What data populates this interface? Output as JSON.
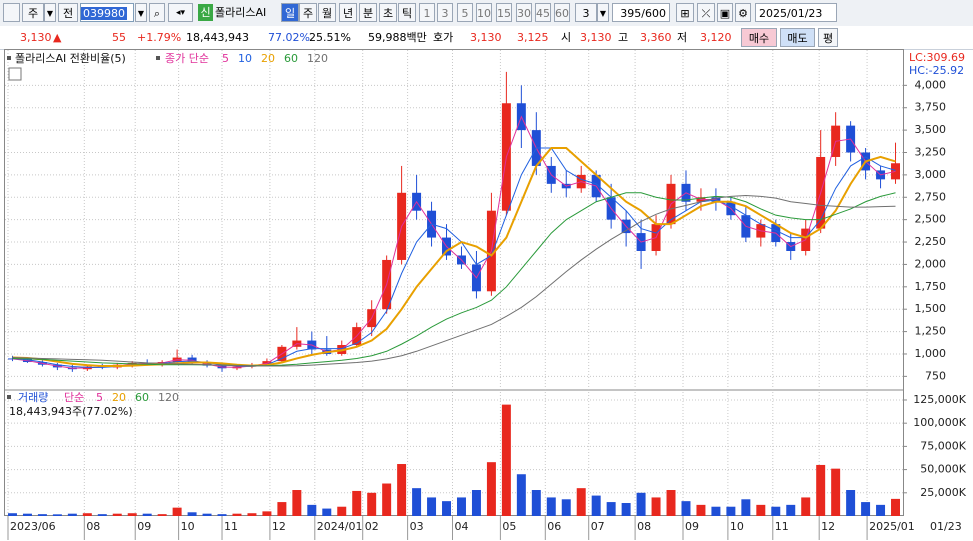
{
  "toolbar": {
    "market": "주",
    "mode": "전",
    "code": "039980",
    "badge": "신",
    "name": "폴라리스AI",
    "periods": [
      "일",
      "주",
      "월",
      "년",
      "분",
      "초",
      "틱"
    ],
    "minutes": [
      "1",
      "3",
      "5",
      "10",
      "15",
      "30",
      "45",
      "60"
    ],
    "custom": "3",
    "count": "395",
    "count_max": "/600",
    "date": "2025/01/23"
  },
  "quote": {
    "price": "3,130",
    "arrow": "▲",
    "change": "55",
    "rate": "+1.79%",
    "volume": "18,443,943",
    "vol_rate": "77.02%",
    "turnover": "25.51%",
    "amount": "59,988백만",
    "ask_label": "호가",
    "ask": "3,130",
    "bid": "3,125",
    "open_label": "시",
    "open": "3,130",
    "high_label": "고",
    "high": "3,360",
    "low_label": "저",
    "low": "3,120",
    "buy": "매수",
    "sell": "매도",
    "avg": "평"
  },
  "chart_data": [
    {
      "type": "candlestick",
      "title": "폴라리스AI 전환비율(5)",
      "ma_label": "종가 단순",
      "annotations": [
        "LC:309.69",
        "HC:-25.92"
      ],
      "x_end_label": "01/23",
      "x": [
        0,
        1,
        2,
        3,
        4,
        5,
        6,
        7,
        8,
        9,
        10,
        11,
        12,
        13,
        14,
        15,
        16,
        17,
        18,
        19,
        20,
        21,
        22,
        23,
        24,
        25,
        26,
        27,
        28,
        29,
        30,
        31,
        32,
        33,
        34,
        35,
        36,
        37,
        38,
        39,
        40,
        41,
        42,
        43,
        44,
        45,
        46,
        47,
        48,
        49,
        50,
        51,
        52,
        53,
        54,
        55,
        56,
        57,
        58,
        59
      ],
      "xlim": [
        -0.5,
        59.5
      ],
      "xticks": [
        {
          "value": -0.3,
          "label": "2023/06"
        },
        {
          "value": 4.8,
          "label": "08"
        },
        {
          "value": 8.2,
          "label": "09"
        },
        {
          "value": 11.1,
          "label": "10"
        },
        {
          "value": 14,
          "label": "11"
        },
        {
          "value": 17.2,
          "label": "12"
        },
        {
          "value": 20.2,
          "label": "2024/01"
        },
        {
          "value": 23.4,
          "label": "02"
        },
        {
          "value": 26.4,
          "label": "03"
        },
        {
          "value": 29.4,
          "label": "04"
        },
        {
          "value": 32.6,
          "label": "05"
        },
        {
          "value": 35.6,
          "label": "06"
        },
        {
          "value": 38.5,
          "label": "07"
        },
        {
          "value": 41.6,
          "label": "08"
        },
        {
          "value": 44.8,
          "label": "09"
        },
        {
          "value": 47.8,
          "label": "10"
        },
        {
          "value": 50.8,
          "label": "11"
        },
        {
          "value": 53.9,
          "label": "12"
        },
        {
          "value": 57.1,
          "label": "2025/01"
        }
      ],
      "ylim": [
        620,
        4350
      ],
      "yticks": [
        750,
        {
          "value": 1000,
          "label": "1,000"
        },
        {
          "value": 1250,
          "label": "1,250"
        },
        {
          "value": 1500,
          "label": "1,500"
        },
        {
          "value": 1750,
          "label": "1,750"
        },
        {
          "value": 2000,
          "label": "2,000"
        },
        {
          "value": 2250,
          "label": "2,250"
        },
        {
          "value": 2500,
          "label": "2,500"
        },
        {
          "value": 2750,
          "label": "2,750"
        },
        {
          "value": 3000,
          "label": "3,000"
        },
        {
          "value": 3250,
          "label": "3,250"
        },
        {
          "value": 3500,
          "label": "3,500"
        },
        {
          "value": 3750,
          "label": "3,750"
        },
        {
          "value": 4000,
          "label": "4,000"
        }
      ],
      "grid": true,
      "up_color": "#e8281e",
      "down_color": "#1f4fd6",
      "open": [
        950,
        940,
        910,
        880,
        850,
        830,
        860,
        850,
        880,
        900,
        890,
        910,
        960,
        900,
        870,
        840,
        860,
        870,
        920,
        1080,
        1150,
        1050,
        1000,
        1100,
        1300,
        1500,
        2050,
        2800,
        2600,
        2300,
        2100,
        2000,
        1700,
        2600,
        3800,
        3500,
        3100,
        2900,
        2850,
        3000,
        2750,
        2500,
        2350,
        2150,
        2450,
        2900,
        2700,
        2750,
        2700,
        2550,
        2300,
        2450,
        2250,
        2150,
        2400,
        3200,
        3550,
        3250,
        3050,
        2950
      ],
      "high": [
        980,
        960,
        930,
        900,
        880,
        870,
        890,
        900,
        920,
        940,
        930,
        1050,
        990,
        930,
        900,
        880,
        900,
        950,
        1100,
        1300,
        1250,
        1200,
        1150,
        1350,
        1600,
        2100,
        3100,
        3000,
        2700,
        2450,
        2200,
        2150,
        2800,
        4150,
        4000,
        3700,
        3200,
        3050,
        3100,
        3050,
        2900,
        2600,
        2500,
        2550,
        3000,
        3050,
        2850,
        2850,
        2750,
        2650,
        2500,
        2500,
        2350,
        2500,
        3500,
        3700,
        3600,
        3300,
        3100,
        3360
      ],
      "low": [
        920,
        900,
        860,
        820,
        800,
        810,
        830,
        830,
        850,
        870,
        860,
        900,
        880,
        850,
        800,
        820,
        840,
        860,
        900,
        1050,
        1000,
        980,
        980,
        1080,
        1200,
        1450,
        2000,
        2500,
        2200,
        2050,
        1950,
        1620,
        1650,
        2550,
        3300,
        3000,
        2800,
        2750,
        2800,
        2700,
        2400,
        2200,
        1950,
        2100,
        2400,
        2600,
        2600,
        2600,
        2500,
        2250,
        2200,
        2200,
        2050,
        2100,
        2350,
        3100,
        3150,
        2950,
        2850,
        2900
      ],
      "close": [
        940,
        910,
        880,
        850,
        830,
        860,
        850,
        880,
        900,
        890,
        910,
        960,
        900,
        870,
        840,
        860,
        870,
        920,
        1080,
        1150,
        1050,
        1000,
        1100,
        1300,
        1500,
        2050,
        2800,
        2600,
        2300,
        2100,
        2000,
        1700,
        2600,
        3800,
        3500,
        3100,
        2900,
        2850,
        3000,
        2750,
        2500,
        2350,
        2150,
        2450,
        2900,
        2700,
        2750,
        2700,
        2550,
        2300,
        2450,
        2250,
        2150,
        2400,
        3200,
        3550,
        3250,
        3050,
        2950,
        3130
      ],
      "series": [
        {
          "name": "5",
          "color": "#e0309a",
          "values": [
            945,
            925,
            895,
            865,
            840,
            845,
            855,
            865,
            890,
            895,
            900,
            935,
            930,
            885,
            855,
            850,
            865,
            895,
            1000,
            1115,
            1100,
            1025,
            1050,
            1200,
            1400,
            1775,
            2425,
            2700,
            2450,
            2200,
            2050,
            1850,
            2150,
            3200,
            3650,
            3300,
            3000,
            2875,
            2925,
            2875,
            2625,
            2425,
            2250,
            2300,
            2675,
            2800,
            2725,
            2725,
            2625,
            2425,
            2375,
            2350,
            2200,
            2275,
            2800,
            3375,
            3400,
            3150,
            3000,
            3040
          ]
        },
        {
          "name": "10",
          "color": "#2060e0",
          "values": [
            950,
            935,
            910,
            880,
            860,
            850,
            850,
            860,
            875,
            885,
            895,
            915,
            920,
            905,
            880,
            865,
            860,
            880,
            950,
            1030,
            1060,
            1060,
            1060,
            1120,
            1240,
            1480,
            1900,
            2250,
            2450,
            2400,
            2250,
            2000,
            2100,
            2550,
            3000,
            3300,
            3300,
            3050,
            2950,
            2900,
            2750,
            2600,
            2400,
            2350,
            2500,
            2600,
            2700,
            2720,
            2650,
            2550,
            2450,
            2380,
            2300,
            2300,
            2500,
            2850,
            3100,
            3200,
            3100,
            3050
          ]
        },
        {
          "name": "20",
          "color": "#e8a000",
          "values": [
            960,
            955,
            940,
            915,
            890,
            875,
            865,
            865,
            870,
            878,
            885,
            895,
            905,
            905,
            895,
            880,
            870,
            875,
            905,
            950,
            990,
            1020,
            1040,
            1080,
            1150,
            1280,
            1500,
            1750,
            1950,
            2150,
            2250,
            2200,
            2100,
            2300,
            2700,
            3100,
            3300,
            3300,
            3150,
            3000,
            2850,
            2700,
            2600,
            2450,
            2450,
            2550,
            2650,
            2700,
            2700,
            2650,
            2550,
            2450,
            2350,
            2300,
            2400,
            2600,
            2900,
            3150,
            3200,
            3150
          ]
        },
        {
          "name": "60",
          "color": "#2a9a3a",
          "values": [
            950,
            945,
            940,
            930,
            920,
            910,
            900,
            895,
            890,
            885,
            880,
            880,
            880,
            878,
            875,
            872,
            870,
            870,
            875,
            885,
            900,
            915,
            930,
            950,
            980,
            1030,
            1110,
            1200,
            1300,
            1390,
            1460,
            1520,
            1600,
            1750,
            1950,
            2150,
            2350,
            2500,
            2600,
            2700,
            2750,
            2800,
            2800,
            2750,
            2720,
            2720,
            2740,
            2760,
            2750,
            2700,
            2620,
            2550,
            2520,
            2500,
            2500,
            2560,
            2620,
            2700,
            2760,
            2800
          ]
        },
        {
          "name": "120",
          "color": "#707070",
          "values": [
            960,
            955,
            950,
            945,
            940,
            935,
            930,
            920,
            910,
            900,
            895,
            890,
            885,
            880,
            875,
            870,
            868,
            866,
            865,
            868,
            875,
            885,
            895,
            905,
            920,
            945,
            980,
            1030,
            1090,
            1150,
            1210,
            1270,
            1330,
            1420,
            1520,
            1640,
            1780,
            1920,
            2050,
            2170,
            2280,
            2380,
            2480,
            2560,
            2620,
            2660,
            2700,
            2740,
            2760,
            2770,
            2760,
            2740,
            2700,
            2680,
            2660,
            2650,
            2640,
            2640,
            2645,
            2650
          ]
        }
      ]
    },
    {
      "type": "bar",
      "title": "거래량",
      "ma_label": "단순",
      "subtitle": "18,443,943주(77.02%)",
      "ylim": [
        0,
        133600
      ],
      "yticks": [
        {
          "value": 25000,
          "label": "25,000K"
        },
        {
          "value": 50000,
          "label": "50,000K"
        },
        {
          "value": 75000,
          "label": "75,000K"
        },
        {
          "value": 100000,
          "label": "100,000K"
        },
        {
          "value": 125000,
          "label": "125,000K"
        }
      ],
      "values": [
        3000,
        2500,
        2000,
        1800,
        2500,
        3000,
        2000,
        2500,
        3000,
        2500,
        2000,
        9000,
        4000,
        2500,
        2000,
        2500,
        3000,
        5000,
        15000,
        28000,
        12000,
        8000,
        10000,
        27000,
        25000,
        35000,
        56000,
        30000,
        20000,
        16000,
        20000,
        28000,
        58000,
        120000,
        45000,
        28000,
        20000,
        18000,
        30000,
        22000,
        15000,
        14000,
        25000,
        20000,
        28000,
        16000,
        12000,
        10000,
        10000,
        18000,
        12000,
        10000,
        12000,
        20000,
        55000,
        51000,
        28000,
        15000,
        12000,
        18444
      ],
      "series": [
        {
          "name": "5",
          "color": "#e0309a"
        },
        {
          "name": "20",
          "color": "#e8a000"
        },
        {
          "name": "60",
          "color": "#2a9a3a"
        },
        {
          "name": "120",
          "color": "#707070"
        }
      ]
    }
  ]
}
